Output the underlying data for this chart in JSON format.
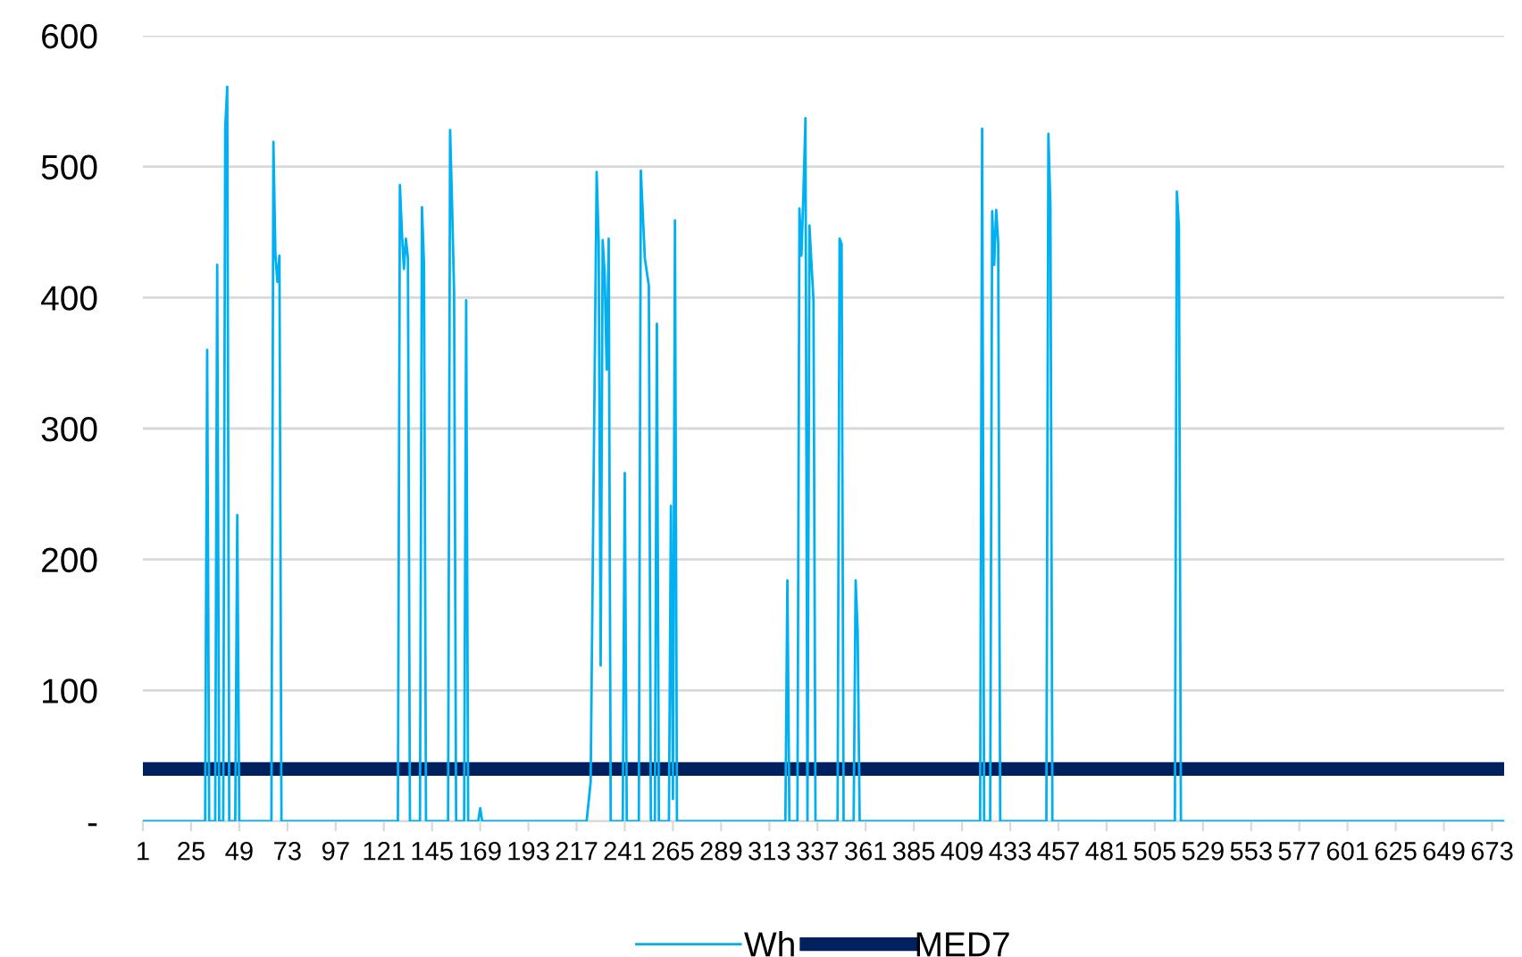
{
  "chart_data": {
    "type": "line",
    "xlim": [
      1,
      679
    ],
    "xticks": [
      1,
      25,
      49,
      73,
      97,
      121,
      145,
      169,
      193,
      217,
      241,
      265,
      289,
      313,
      337,
      361,
      385,
      409,
      433,
      457,
      481,
      505,
      529,
      553,
      577,
      601,
      625,
      649,
      673
    ],
    "ylim": [
      0,
      600
    ],
    "yticks": [
      {
        "value": 0,
        "label": "-"
      },
      100,
      200,
      300,
      400,
      500,
      600
    ],
    "grid": "y",
    "legend": "bottom",
    "marker": "none",
    "line_style": "solid",
    "series": [
      {
        "name": "Wh",
        "color": "#00b0f0",
        "x": [
          1,
          32,
          33,
          34,
          37,
          38,
          39,
          41,
          42,
          43,
          44,
          47,
          48,
          49,
          65,
          66,
          67,
          68,
          69,
          70,
          128,
          129,
          130,
          131,
          132,
          133,
          134,
          139,
          140,
          141,
          142,
          153,
          154,
          155,
          156,
          157,
          161,
          162,
          163,
          168,
          169,
          170,
          222,
          224,
          227,
          228,
          229,
          230,
          231,
          232,
          233,
          234,
          240,
          241,
          242,
          248,
          249,
          251,
          253,
          254,
          256,
          257,
          258,
          263,
          264,
          265,
          266,
          267,
          321,
          322,
          323,
          327,
          328,
          329,
          330,
          331,
          332,
          333,
          334,
          335,
          336,
          347,
          348,
          349,
          350,
          355,
          356,
          357,
          358,
          418,
          419,
          420,
          423,
          424,
          425,
          426,
          427,
          428,
          451,
          452,
          453,
          454,
          515,
          516,
          517,
          518,
          679
        ],
        "values": [
          0,
          0,
          360,
          0,
          0,
          425,
          0,
          0,
          530,
          561,
          0,
          0,
          234,
          0,
          0,
          519,
          432,
          412,
          432,
          0,
          0,
          486,
          450,
          422,
          445,
          430,
          0,
          0,
          469,
          425,
          0,
          0,
          528,
          470,
          404,
          0,
          0,
          398,
          0,
          0,
          10,
          0,
          0,
          30,
          496,
          443,
          119,
          444,
          418,
          345,
          445,
          0,
          0,
          266,
          0,
          0,
          497,
          430,
          409,
          0,
          0,
          380,
          0,
          0,
          241,
          17,
          459,
          0,
          0,
          184,
          0,
          0,
          468,
          432,
          480,
          537,
          0,
          455,
          426,
          398,
          0,
          0,
          445,
          441,
          0,
          0,
          184,
          145,
          0,
          0,
          529,
          0,
          0,
          466,
          425,
          467,
          442,
          0,
          0,
          525,
          470,
          0,
          0,
          481,
          454,
          0,
          0
        ]
      },
      {
        "name": "MED7",
        "color": "#002060",
        "x": [
          1,
          679
        ],
        "values": [
          40,
          40
        ]
      }
    ]
  }
}
